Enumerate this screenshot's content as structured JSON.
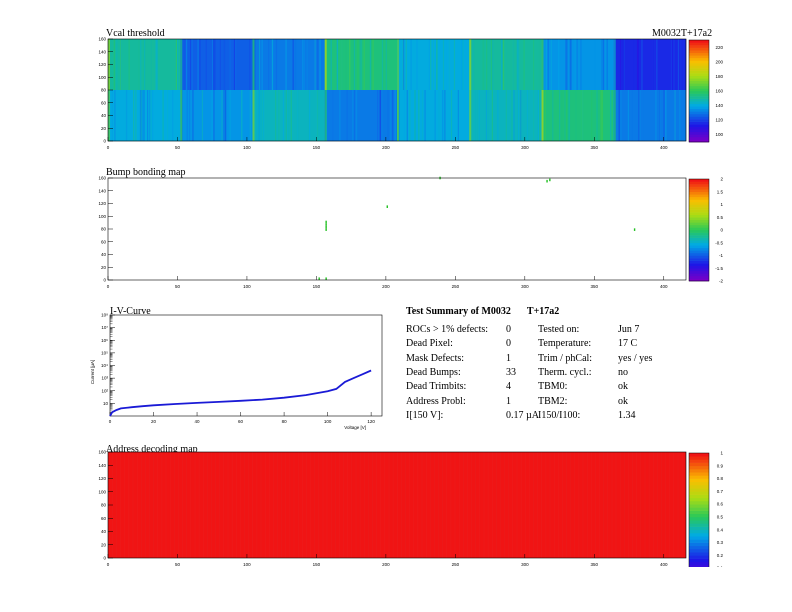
{
  "module_id": "M0032T+17a2",
  "vcal": {
    "title": "Vcal threshold",
    "x_ticks": [
      "0",
      "50",
      "100",
      "150",
      "200",
      "250",
      "300",
      "350",
      "400"
    ],
    "y_ticks": [
      "0",
      "20",
      "40",
      "60",
      "80",
      "100",
      "120",
      "140",
      "160"
    ],
    "z_ticks": [
      "100",
      "120",
      "140",
      "160",
      "180",
      "200",
      "220"
    ]
  },
  "bump": {
    "title": "Bump bonding map",
    "x_ticks": [
      "0",
      "50",
      "100",
      "150",
      "200",
      "250",
      "300",
      "350",
      "400"
    ],
    "y_ticks": [
      "0",
      "20",
      "40",
      "60",
      "80",
      "100",
      "120",
      "140",
      "160"
    ],
    "z_ticks": [
      "-2",
      "-1.5",
      "-1",
      "-0.5",
      "0",
      "0.5",
      "1",
      "1.5",
      "2"
    ]
  },
  "addr": {
    "title": "Address decoding map",
    "x_ticks": [
      "0",
      "50",
      "100",
      "150",
      "200",
      "250",
      "300",
      "350",
      "400"
    ],
    "y_ticks": [
      "0",
      "20",
      "40",
      "60",
      "80",
      "100",
      "120",
      "140",
      "160"
    ],
    "z_ticks": [
      "0",
      "0.1",
      "0.2",
      "0.3",
      "0.4",
      "0.5",
      "0.6",
      "0.7",
      "0.8",
      "0.9",
      "1"
    ]
  },
  "iv": {
    "title": "I-V-Curve",
    "xlabel": "Voltage [V]",
    "ylabel": "Current [µA]",
    "x_ticks": [
      "0",
      "20",
      "40",
      "60",
      "80",
      "100",
      "120"
    ],
    "y_ticks": [
      "10",
      "10²",
      "10³",
      "10⁴",
      "10⁵",
      "10⁶",
      "10⁷",
      "10⁸"
    ]
  },
  "summary": {
    "heading_prefix": "Test Summary of M0032",
    "heading_suffix": "T+17a2",
    "left": [
      {
        "label": "ROCs > 1% defects:",
        "value": "0"
      },
      {
        "label": "Dead Pixel:",
        "value": "0"
      },
      {
        "label": "Mask Defects:",
        "value": "1"
      },
      {
        "label": "Dead Bumps:",
        "value": "33"
      },
      {
        "label": "Dead Trimbits:",
        "value": "4"
      },
      {
        "label": "Address Probl:",
        "value": "1"
      },
      {
        "label": "I[150 V]:",
        "value": "0.17 µA"
      }
    ],
    "right": [
      {
        "label": "Tested on:",
        "value": "Jun 7"
      },
      {
        "label": "Temperature:",
        "value": "17 C"
      },
      {
        "label": "Trim / phCal:",
        "value": "yes / yes"
      },
      {
        "label": "Therm. cycl.:",
        "value": "no"
      },
      {
        "label": "TBM0:",
        "value": "ok"
      },
      {
        "label": "TBM2:",
        "value": "ok"
      },
      {
        "label": "I150/I100:",
        "value": "1.34"
      }
    ]
  },
  "chart_data": [
    {
      "type": "heatmap",
      "title": "Vcal threshold",
      "xlim": [
        0,
        416
      ],
      "ylim": [
        0,
        160
      ],
      "zlim": [
        90,
        230
      ],
      "roc_mean_vcal_top": [
        150,
        125,
        130,
        155,
        140,
        150,
        135,
        115
      ],
      "roc_mean_vcal_bottom": [
        140,
        135,
        145,
        130,
        140,
        145,
        155,
        130
      ]
    },
    {
      "type": "heatmap",
      "title": "Bump bonding map",
      "xlim": [
        0,
        416
      ],
      "ylim": [
        0,
        160
      ],
      "zlim": [
        -2,
        2
      ],
      "hits": [
        {
          "x": 157,
          "y": 91
        },
        {
          "x": 157,
          "y": 87
        },
        {
          "x": 157,
          "y": 83
        },
        {
          "x": 157,
          "y": 79
        },
        {
          "x": 157,
          "y": 2
        },
        {
          "x": 152,
          "y": 2
        },
        {
          "x": 201,
          "y": 115
        },
        {
          "x": 239,
          "y": 160
        },
        {
          "x": 316,
          "y": 155
        },
        {
          "x": 318,
          "y": 157
        },
        {
          "x": 379,
          "y": 79
        }
      ]
    },
    {
      "type": "line",
      "title": "I-V-Curve",
      "xlabel": "Voltage [V]",
      "ylabel": "Current [µA]",
      "xlim": [
        0,
        125
      ],
      "ylim": [
        1,
        100000000
      ],
      "yscale": "log",
      "x": [
        0,
        1,
        3,
        5,
        10,
        15,
        20,
        30,
        40,
        50,
        60,
        70,
        80,
        90,
        100,
        104,
        108,
        112,
        116,
        120
      ],
      "y": [
        1,
        2,
        3,
        4,
        5,
        6,
        7,
        9,
        11,
        13,
        16,
        20,
        28,
        45,
        90,
        140,
        500,
        1000,
        2000,
        4000
      ]
    },
    {
      "type": "heatmap",
      "title": "Address decoding map",
      "xlim": [
        0,
        416
      ],
      "ylim": [
        0,
        160
      ],
      "zlim": [
        0,
        1
      ],
      "fill_value": 1
    }
  ]
}
